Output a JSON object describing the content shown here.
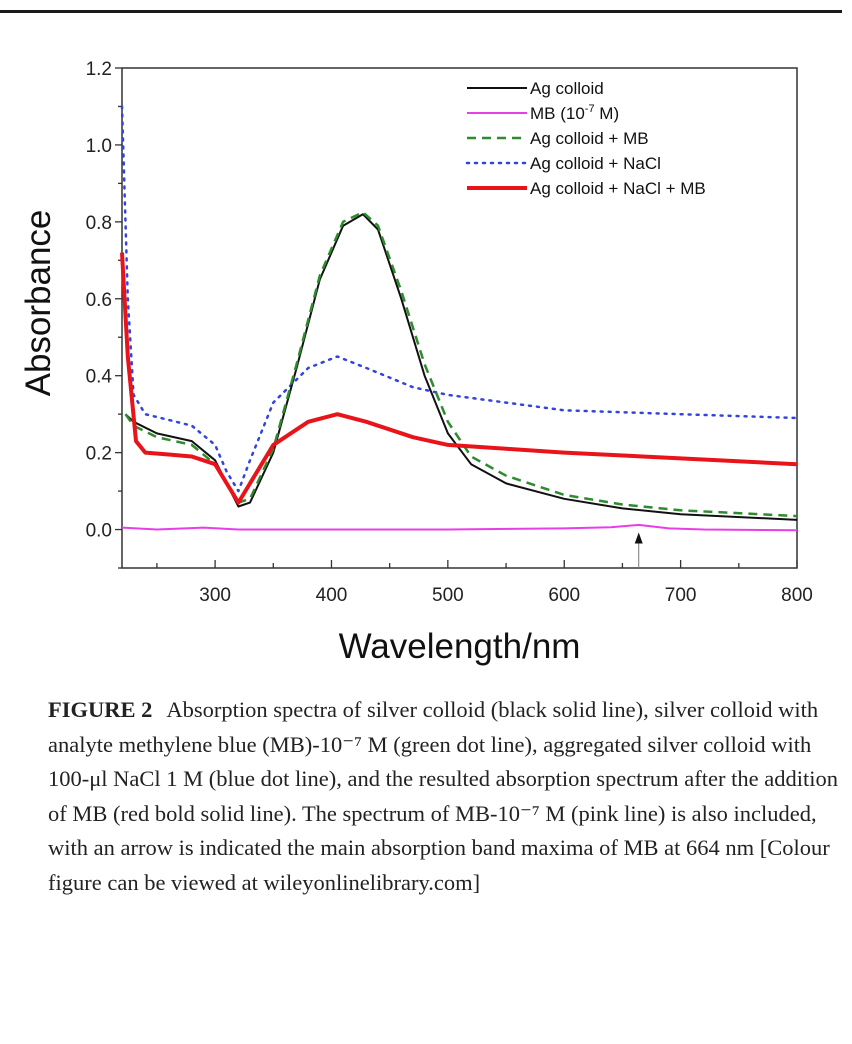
{
  "chart_data": {
    "type": "line",
    "title": "",
    "xlabel": "Wavelength/nm",
    "ylabel": "Absorbance",
    "xlim": [
      220,
      800
    ],
    "ylim": [
      -0.1,
      1.2
    ],
    "xticks": [
      300,
      400,
      500,
      600,
      700,
      800
    ],
    "yticks": [
      "0.0",
      "0.2",
      "0.4",
      "0.6",
      "0.8",
      "1.0",
      "1.2"
    ],
    "grid": false,
    "legend_position": "top-right",
    "annotation": {
      "type": "arrow",
      "x": 664,
      "label": ""
    },
    "series": [
      {
        "name": "Ag colloid",
        "color": "#111111",
        "style": "solid",
        "x": [
          223,
          230,
          250,
          280,
          300,
          310,
          320,
          330,
          350,
          370,
          390,
          410,
          427,
          440,
          460,
          480,
          500,
          520,
          550,
          600,
          650,
          700,
          800
        ],
        "y": [
          0.3,
          0.28,
          0.25,
          0.23,
          0.18,
          0.12,
          0.06,
          0.07,
          0.2,
          0.42,
          0.65,
          0.79,
          0.82,
          0.78,
          0.6,
          0.4,
          0.25,
          0.17,
          0.12,
          0.08,
          0.055,
          0.04,
          0.025
        ]
      },
      {
        "name": "MB (10^-7 M)",
        "color": "#e83ee8",
        "style": "solid",
        "x": [
          220,
          250,
          290,
          320,
          400,
          500,
          600,
          640,
          664,
          690,
          720,
          800
        ],
        "y": [
          0.005,
          0.0,
          0.005,
          0.0,
          0.0,
          0.0,
          0.003,
          0.006,
          0.012,
          0.003,
          0.0,
          -0.002
        ]
      },
      {
        "name": "Ag colloid + MB",
        "color": "#2e8b2e",
        "style": "dashed",
        "x": [
          223,
          230,
          250,
          280,
          300,
          310,
          320,
          330,
          350,
          370,
          390,
          410,
          427,
          440,
          460,
          480,
          500,
          520,
          550,
          600,
          650,
          700,
          800
        ],
        "y": [
          0.3,
          0.27,
          0.24,
          0.22,
          0.17,
          0.12,
          0.07,
          0.08,
          0.21,
          0.43,
          0.66,
          0.8,
          0.825,
          0.79,
          0.62,
          0.43,
          0.28,
          0.19,
          0.14,
          0.09,
          0.065,
          0.05,
          0.035
        ]
      },
      {
        "name": "Ag colloid + NaCl",
        "color": "#3344dd",
        "style": "dotted",
        "x": [
          220,
          225,
          230,
          240,
          260,
          280,
          300,
          310,
          320,
          330,
          350,
          380,
          405,
          430,
          470,
          500,
          550,
          600,
          700,
          800
        ],
        "y": [
          1.1,
          0.6,
          0.35,
          0.3,
          0.285,
          0.27,
          0.22,
          0.15,
          0.1,
          0.18,
          0.33,
          0.42,
          0.45,
          0.42,
          0.37,
          0.35,
          0.33,
          0.31,
          0.3,
          0.29
        ]
      },
      {
        "name": "Ag colloid + NaCl + MB",
        "color": "#e8141a",
        "style": "bold",
        "x": [
          220,
          225,
          232,
          240,
          260,
          280,
          300,
          310,
          320,
          330,
          350,
          380,
          405,
          430,
          470,
          500,
          550,
          600,
          700,
          800
        ],
        "y": [
          0.72,
          0.45,
          0.23,
          0.2,
          0.195,
          0.19,
          0.17,
          0.12,
          0.07,
          0.12,
          0.22,
          0.28,
          0.3,
          0.28,
          0.24,
          0.22,
          0.21,
          0.2,
          0.185,
          0.17
        ]
      }
    ]
  },
  "caption": {
    "label": "FIGURE 2",
    "text": "Absorption spectra of silver colloid (black solid line), silver colloid with analyte methylene blue (MB)-10⁻⁷ M (green dot line), aggregated silver colloid with 100-μl NaCl 1 M (blue dot line), and the resulted absorption spectrum after the addition of MB (red bold solid line). The spectrum of MB-10⁻⁷ M (pink line) is also included, with an arrow is indicated the main absorption band maxima of MB at 664 nm [Colour figure can be viewed at wileyonlinelibrary.com]"
  }
}
